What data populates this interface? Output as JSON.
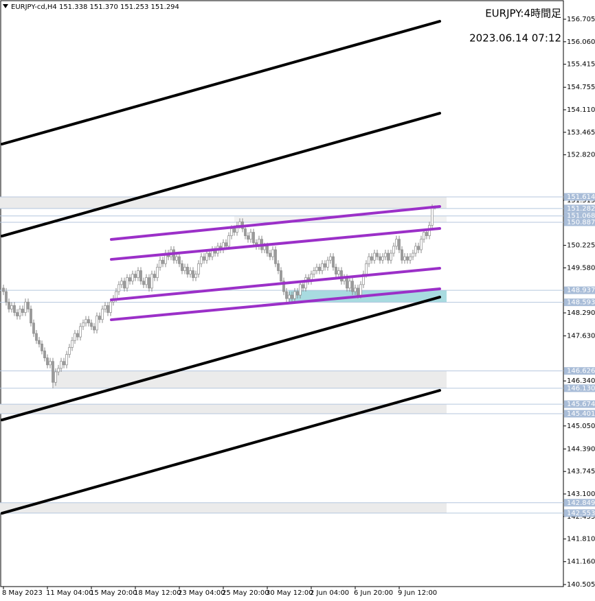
{
  "chart_data": {
    "type": "candlestick",
    "symbol_info": "EURJPY-cd,H4  151.338 151.370 151.253 151.294",
    "title": "EURJPY:4時間足",
    "subtitle": "2023.06.14 07:12",
    "xlim": [
      -1.25,
      203.75
    ],
    "ylim": [
      140.446,
      157.256
    ],
    "xticks": [
      {
        "value": 0,
        "label": "8 May 2023"
      },
      {
        "value": 16,
        "label": "11 May 04:00"
      },
      {
        "value": 32,
        "label": "15 May 20:00"
      },
      {
        "value": 48,
        "label": "18 May 12:00"
      },
      {
        "value": 64,
        "label": "23 May 04:00"
      },
      {
        "value": 80,
        "label": "25 May 20:00"
      },
      {
        "value": 96,
        "label": "30 May 12:00"
      },
      {
        "value": 112,
        "label": "2 Jun 04:00"
      },
      {
        "value": 128,
        "label": "6 Jun 20:00"
      },
      {
        "value": 144,
        "label": "9 Jun 12:00"
      }
    ],
    "yticks": [
      156.705,
      {
        "value": 156.06,
        "label": "156.060"
      },
      155.415,
      154.755,
      {
        "value": 154.11,
        "label": "154.110"
      },
      153.465,
      {
        "value": 152.82,
        "label": "152.820"
      },
      151.515,
      150.225,
      {
        "value": 149.58,
        "label": "149.580"
      },
      {
        "value": 148.29,
        "label": "148.290"
      },
      {
        "value": 147.63,
        "label": "147.630"
      },
      {
        "value": 146.34,
        "label": "146.340"
      },
      {
        "value": 145.05,
        "label": "145.050"
      },
      {
        "value": 144.39,
        "label": "144.390"
      },
      143.745,
      {
        "value": 143.1,
        "label": "143.100"
      },
      142.455,
      {
        "value": 141.81,
        "label": "141.810"
      },
      {
        "value": 141.16,
        "label": "141.160"
      },
      140.505
    ],
    "open": [
      149.0,
      148.9,
      148.6,
      148.4,
      148.5,
      148.3,
      148.2,
      148.4,
      148.3,
      148.6,
      148.4,
      148.0,
      147.7,
      147.5,
      147.4,
      147.2,
      147.0,
      146.8,
      146.9,
      146.3,
      146.6,
      146.7,
      146.9,
      146.8,
      147.1,
      147.3,
      147.5,
      147.7,
      147.6,
      147.9,
      148.0,
      148.1,
      148.0,
      147.9,
      147.8,
      148.2,
      148.1,
      148.4,
      148.5,
      148.3,
      148.6,
      148.7,
      148.9,
      149.1,
      149.2,
      149.0,
      149.3,
      149.2,
      149.4,
      149.3,
      149.5,
      149.2,
      149.1,
      149.3,
      149.0,
      149.4,
      149.3,
      149.6,
      149.8,
      149.7,
      150.0,
      149.9,
      150.1,
      149.8,
      149.9,
      149.7,
      149.5,
      149.6,
      149.4,
      149.5,
      149.3,
      149.4,
      149.7,
      149.9,
      149.8,
      150.0,
      149.9,
      150.1,
      150.0,
      150.2,
      150.1,
      150.3,
      150.2,
      150.5,
      150.7,
      150.6,
      150.8,
      150.9,
      150.7,
      150.5,
      150.4,
      150.6,
      150.3,
      150.2,
      150.4,
      150.1,
      150.2,
      150.0,
      149.9,
      150.1,
      149.7,
      149.5,
      149.2,
      148.9,
      148.7,
      148.8,
      148.7,
      148.9,
      148.8,
      149.1,
      149.0,
      149.3,
      149.2,
      149.4,
      149.5,
      149.6,
      149.5,
      149.7,
      149.6,
      149.8,
      149.9,
      149.6,
      149.4,
      149.5,
      149.2,
      149.3,
      149.0,
      149.2,
      148.9,
      149.0,
      148.8,
      149.1,
      149.4,
      149.7,
      149.9,
      149.8,
      150.0,
      149.9,
      149.8,
      149.9,
      150.0,
      149.8,
      150.0,
      150.2,
      150.4,
      150.1,
      149.8,
      149.9,
      149.8,
      149.9,
      150.0,
      150.2,
      150.1,
      150.4,
      150.6,
      150.5,
      150.8,
      151.338
    ],
    "high": [
      149.1,
      149.0,
      148.7,
      148.6,
      148.6,
      148.4,
      148.5,
      148.5,
      148.7,
      148.7,
      148.5,
      148.1,
      147.8,
      147.6,
      147.5,
      147.3,
      147.1,
      147.0,
      147.0,
      146.7,
      146.8,
      147.0,
      147.0,
      147.2,
      147.4,
      147.6,
      147.8,
      147.8,
      148.0,
      148.1,
      148.2,
      148.2,
      148.1,
      148.0,
      148.3,
      148.3,
      148.5,
      148.6,
      148.6,
      148.7,
      148.8,
      149.0,
      149.2,
      149.3,
      149.3,
      149.4,
      149.4,
      149.5,
      149.5,
      149.6,
      149.6,
      149.3,
      149.4,
      149.4,
      149.5,
      149.5,
      149.7,
      149.9,
      149.9,
      150.1,
      150.1,
      150.2,
      150.2,
      150.0,
      150.0,
      149.8,
      149.7,
      149.7,
      149.6,
      149.6,
      149.5,
      149.8,
      150.0,
      150.0,
      150.1,
      150.1,
      150.2,
      150.2,
      150.3,
      150.3,
      150.4,
      150.4,
      150.6,
      150.8,
      150.8,
      150.9,
      151.0,
      151.0,
      150.8,
      150.6,
      150.7,
      150.7,
      150.4,
      150.5,
      150.5,
      150.3,
      150.3,
      150.1,
      150.2,
      150.2,
      149.8,
      149.6,
      149.3,
      149.0,
      148.9,
      148.9,
      149.0,
      149.0,
      149.2,
      149.2,
      149.4,
      149.4,
      149.5,
      149.6,
      149.7,
      149.7,
      149.8,
      149.8,
      149.9,
      150.0,
      150.0,
      149.7,
      149.6,
      149.6,
      149.4,
      149.4,
      149.3,
      149.3,
      149.1,
      149.1,
      149.2,
      149.5,
      149.8,
      150.0,
      150.0,
      150.1,
      150.1,
      150.0,
      150.0,
      150.1,
      150.1,
      150.1,
      150.3,
      150.5,
      150.5,
      150.2,
      150.0,
      150.0,
      150.0,
      150.1,
      150.3,
      150.3,
      150.5,
      150.7,
      150.7,
      150.9,
      151.4,
      151.37
    ],
    "low": [
      148.8,
      148.5,
      148.3,
      148.3,
      148.2,
      148.1,
      148.1,
      148.2,
      148.2,
      148.3,
      147.9,
      147.6,
      147.4,
      147.3,
      147.1,
      146.9,
      146.7,
      146.7,
      146.13,
      146.2,
      146.5,
      146.6,
      146.7,
      146.7,
      147.0,
      147.2,
      147.4,
      147.5,
      147.5,
      147.8,
      147.9,
      147.9,
      147.8,
      147.7,
      147.7,
      148.0,
      148.0,
      148.3,
      148.2,
      148.2,
      148.5,
      148.6,
      148.8,
      149.0,
      148.9,
      148.9,
      149.1,
      149.1,
      149.2,
      149.2,
      149.1,
      149.0,
      149.0,
      148.9,
      148.9,
      149.2,
      149.2,
      149.5,
      149.6,
      149.6,
      149.8,
      149.8,
      149.7,
      149.7,
      149.6,
      149.4,
      149.4,
      149.3,
      149.3,
      149.2,
      149.2,
      149.3,
      149.6,
      149.7,
      149.7,
      149.8,
      149.8,
      149.9,
      149.9,
      150.0,
      150.0,
      150.1,
      150.1,
      150.4,
      150.5,
      150.5,
      150.7,
      150.6,
      150.4,
      150.3,
      150.3,
      150.2,
      150.1,
      150.1,
      150.0,
      150.0,
      149.9,
      149.8,
      149.8,
      149.6,
      149.4,
      149.1,
      148.8,
      148.6,
      148.6,
      148.6,
      148.6,
      148.7,
      148.7,
      148.9,
      148.9,
      149.1,
      149.1,
      149.3,
      149.4,
      149.4,
      149.4,
      149.5,
      149.5,
      149.7,
      149.5,
      149.3,
      149.3,
      149.1,
      149.1,
      148.9,
      148.9,
      148.8,
      148.8,
      148.7,
      148.7,
      149.0,
      149.3,
      149.6,
      149.7,
      149.7,
      149.8,
      149.7,
      149.7,
      149.8,
      149.7,
      149.7,
      149.9,
      150.1,
      150.0,
      149.7,
      149.7,
      149.7,
      149.7,
      149.8,
      149.9,
      150.0,
      150.0,
      150.3,
      150.4,
      150.4,
      150.7,
      151.253
    ],
    "close": [
      148.9,
      148.6,
      148.4,
      148.5,
      148.3,
      148.2,
      148.4,
      148.3,
      148.6,
      148.4,
      148.0,
      147.7,
      147.5,
      147.4,
      147.2,
      147.0,
      146.8,
      146.9,
      146.3,
      146.6,
      146.7,
      146.9,
      146.8,
      147.1,
      147.3,
      147.5,
      147.7,
      147.6,
      147.9,
      148.0,
      148.1,
      148.0,
      147.9,
      147.8,
      148.2,
      148.1,
      148.4,
      148.5,
      148.3,
      148.6,
      148.7,
      148.9,
      149.1,
      149.2,
      149.0,
      149.3,
      149.2,
      149.4,
      149.3,
      149.5,
      149.2,
      149.1,
      149.3,
      149.0,
      149.4,
      149.3,
      149.6,
      149.8,
      149.7,
      150.0,
      149.9,
      150.1,
      149.8,
      149.9,
      149.7,
      149.5,
      149.6,
      149.4,
      149.5,
      149.3,
      149.4,
      149.7,
      149.9,
      149.8,
      150.0,
      149.9,
      150.1,
      150.0,
      150.2,
      150.1,
      150.3,
      150.2,
      150.5,
      150.7,
      150.6,
      150.8,
      150.9,
      150.7,
      150.5,
      150.4,
      150.6,
      150.3,
      150.2,
      150.4,
      150.1,
      150.2,
      150.0,
      149.9,
      150.1,
      149.7,
      149.5,
      149.2,
      148.9,
      148.7,
      148.8,
      148.7,
      148.9,
      148.8,
      149.1,
      149.0,
      149.3,
      149.2,
      149.4,
      149.5,
      149.6,
      149.5,
      149.7,
      149.6,
      149.8,
      149.9,
      149.6,
      149.4,
      149.5,
      149.2,
      149.3,
      149.0,
      149.2,
      148.9,
      149.0,
      148.8,
      149.1,
      149.4,
      149.7,
      149.9,
      149.8,
      150.0,
      149.9,
      149.8,
      149.9,
      150.0,
      149.8,
      150.0,
      150.2,
      150.4,
      150.1,
      149.8,
      149.9,
      149.8,
      149.9,
      150.0,
      150.2,
      150.1,
      150.4,
      150.6,
      150.5,
      150.8,
      151.338,
      151.294
    ],
    "up_color": "#ffffff",
    "down_color": "#9a9a9a",
    "wick_color": "#8a8a8a",
    "trend_lines": [
      {
        "x": [
          -0.5,
          158.75
        ],
        "y": [
          153.127,
          156.646
        ],
        "color": "#000000"
      },
      {
        "x": [
          -0.5,
          158.75
        ],
        "y": [
          150.492,
          154.011
        ],
        "color": "#000000"
      },
      {
        "x": [
          -0.5,
          158.75
        ],
        "y": [
          145.222,
          148.742
        ],
        "color": "#000000"
      },
      {
        "x": [
          -0.5,
          158.75
        ],
        "y": [
          142.549,
          146.068
        ],
        "color": "#000000"
      },
      {
        "x": [
          39.25,
          158.75
        ],
        "y": [
          150.394,
          151.338
        ],
        "color": "#9b30c8"
      },
      {
        "x": [
          39.25,
          158.75
        ],
        "y": [
          149.823,
          150.708
        ],
        "color": "#9b30c8"
      },
      {
        "x": [
          39.25,
          158.75
        ],
        "y": [
          148.663,
          149.568
        ],
        "color": "#9b30c8"
      },
      {
        "x": [
          39.25,
          158.75
        ],
        "y": [
          148.093,
          148.978
        ],
        "color": "#9b30c8"
      }
    ],
    "zones": [
      {
        "top": 151.614,
        "bottom": 151.282,
        "from": -1.25,
        "to": 161.25,
        "color": "#ebebeb"
      },
      {
        "top": 151.068,
        "bottom": 150.887,
        "from": 84,
        "to": 161.25,
        "color": "#f2f2f2"
      },
      {
        "top": 148.937,
        "bottom": 148.593,
        "from": 103.75,
        "to": 161.25,
        "color": "#a8dbe0"
      },
      {
        "top": 146.626,
        "bottom": {
          "value": 146.13,
          "label": "146.130"
        },
        "from": 18.25,
        "to": 161.25,
        "color": "#ebebeb"
      },
      {
        "top": 145.674,
        "bottom": 145.401,
        "from": -1.25,
        "to": 161.25,
        "color": "#ebebeb"
      },
      {
        "top": 142.849,
        "bottom": 142.553,
        "from": -1.25,
        "to": 161.25,
        "color": "#ebebeb"
      }
    ],
    "zone_line_color": "#b4c6de",
    "label_color": "#a9bdd8"
  }
}
